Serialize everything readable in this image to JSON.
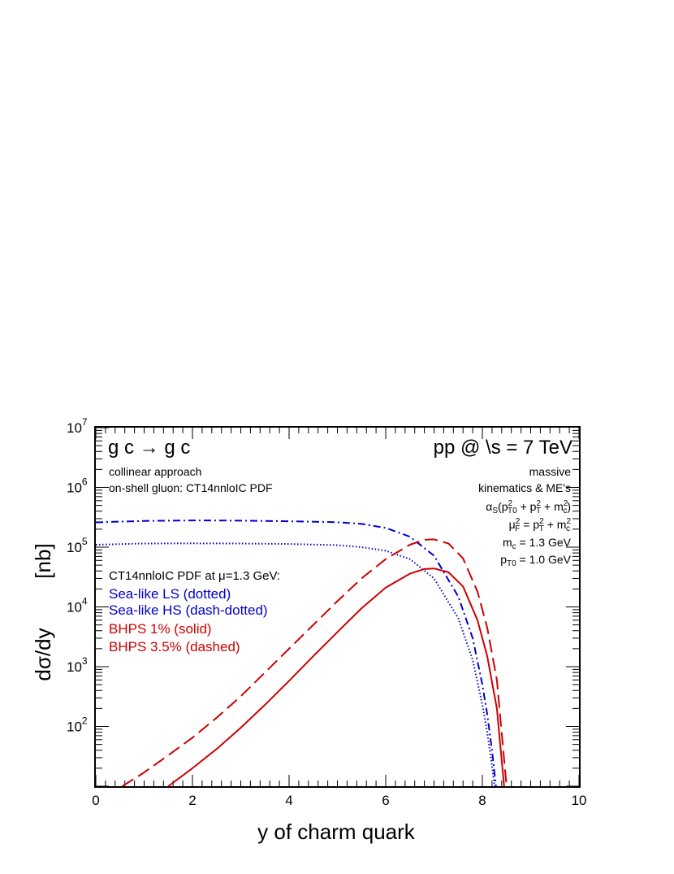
{
  "chart_data": {
    "type": "line",
    "title": "",
    "xlabel": "y of charm quark",
    "ylabel_top": "[nb]",
    "ylabel_bottom": "dσ/dy",
    "xlim": [
      0,
      10
    ],
    "ylim": [
      10,
      10000000
    ],
    "y_scale": "log",
    "grid": false,
    "legend_position": "left",
    "x_tick_labels": [
      "0",
      "2",
      "4",
      "6",
      "8",
      "10"
    ],
    "y_tick_labels": [
      {
        "base": "10",
        "exp": "2"
      },
      {
        "base": "10",
        "exp": "3"
      },
      {
        "base": "10",
        "exp": "4"
      },
      {
        "base": "10",
        "exp": "5"
      },
      {
        "base": "10",
        "exp": "6"
      },
      {
        "base": "10",
        "exp": "7"
      }
    ],
    "annotations": {
      "process": "g c → g c",
      "energy": "pp @ \\s = 7 TeV",
      "approach": "collinear approach",
      "gluon": "on-shell gluon: CT14nnloIC PDF",
      "massive": "massive",
      "kinematics": "kinematics & ME's",
      "alpha_s": "α_S(p²_T0 + p²_T + m²_c)",
      "mu_f": "μ²_F = p²_T + m²_c",
      "mc": "m_c = 1.3 GeV",
      "pt0": "p_T0 = 1.0 GeV",
      "legend_header": "CT14nnloIC PDF at μ=1.3 GeV:"
    },
    "series": [
      {
        "name": "Sea-like LS (dotted)",
        "color": "#0000cc",
        "style": "dotted",
        "x": [
          0,
          1,
          2,
          3,
          4,
          5,
          5.5,
          6,
          6.5,
          7,
          7.5,
          7.8,
          8.0,
          8.1,
          8.2,
          8.25
        ],
        "y": [
          110000,
          115000,
          116000,
          115000,
          113000,
          108000,
          100000,
          87000,
          63000,
          30000,
          6500,
          1300,
          230,
          80,
          22,
          10
        ]
      },
      {
        "name": "Sea-like HS (dash-dotted)",
        "color": "#0000cc",
        "style": "dashdot",
        "x": [
          0,
          1,
          2,
          3,
          4,
          5,
          5.5,
          6,
          6.5,
          7,
          7.5,
          7.8,
          8.0,
          8.1,
          8.2,
          8.28
        ],
        "y": [
          260000,
          275000,
          280000,
          278000,
          272000,
          262000,
          245000,
          210000,
          150000,
          72000,
          15000,
          3000,
          500,
          160,
          40,
          10
        ]
      },
      {
        "name": "BHPS 1% (solid)",
        "color": "#cc0000",
        "style": "solid",
        "x": [
          1.5,
          2,
          2.5,
          3,
          3.5,
          4,
          4.5,
          5,
          5.5,
          6,
          6.5,
          6.8,
          7,
          7.3,
          7.6,
          7.9,
          8.1,
          8.3,
          8.45
        ],
        "y": [
          10,
          20,
          42,
          95,
          230,
          580,
          1500,
          3800,
          9500,
          21000,
          36000,
          43000,
          44000,
          38000,
          22000,
          6000,
          1500,
          200,
          10
        ]
      },
      {
        "name": "BHPS 3.5% (dashed)",
        "color": "#cc0000",
        "style": "dashed",
        "x": [
          0.55,
          1,
          1.5,
          2,
          2.5,
          3,
          3.5,
          4,
          4.5,
          5,
          5.5,
          6,
          6.5,
          6.8,
          7,
          7.3,
          7.6,
          7.9,
          8.1,
          8.3,
          8.5
        ],
        "y": [
          10,
          17,
          33,
          65,
          140,
          320,
          800,
          2000,
          5000,
          12500,
          30000,
          63000,
          110000,
          133000,
          135000,
          115000,
          65000,
          18000,
          4500,
          600,
          10
        ]
      }
    ]
  }
}
